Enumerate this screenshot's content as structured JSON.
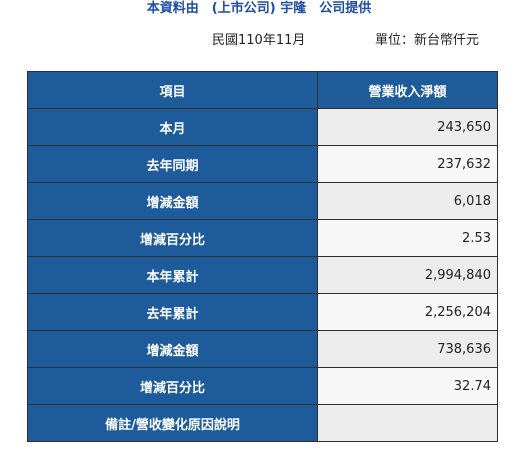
{
  "header": {
    "title": "本資料由　(上市公司) 宇隆　公司提供",
    "date": "民國110年11月",
    "unit": "單位：新台幣仟元"
  },
  "table": {
    "columns": [
      "項目",
      "營業收入淨額"
    ],
    "rows": [
      {
        "label": "本月",
        "value": "243,650"
      },
      {
        "label": "去年同期",
        "value": "237,632"
      },
      {
        "label": "增減金額",
        "value": "6,018"
      },
      {
        "label": "增減百分比",
        "value": "2.53"
      },
      {
        "label": "本年累計",
        "value": "2,994,840"
      },
      {
        "label": "去年累計",
        "value": "2,256,204"
      },
      {
        "label": "增減金額",
        "value": "738,636"
      },
      {
        "label": "增減百分比",
        "value": "32.74"
      },
      {
        "label": "備註/營收變化原因說明",
        "value": ""
      }
    ]
  }
}
